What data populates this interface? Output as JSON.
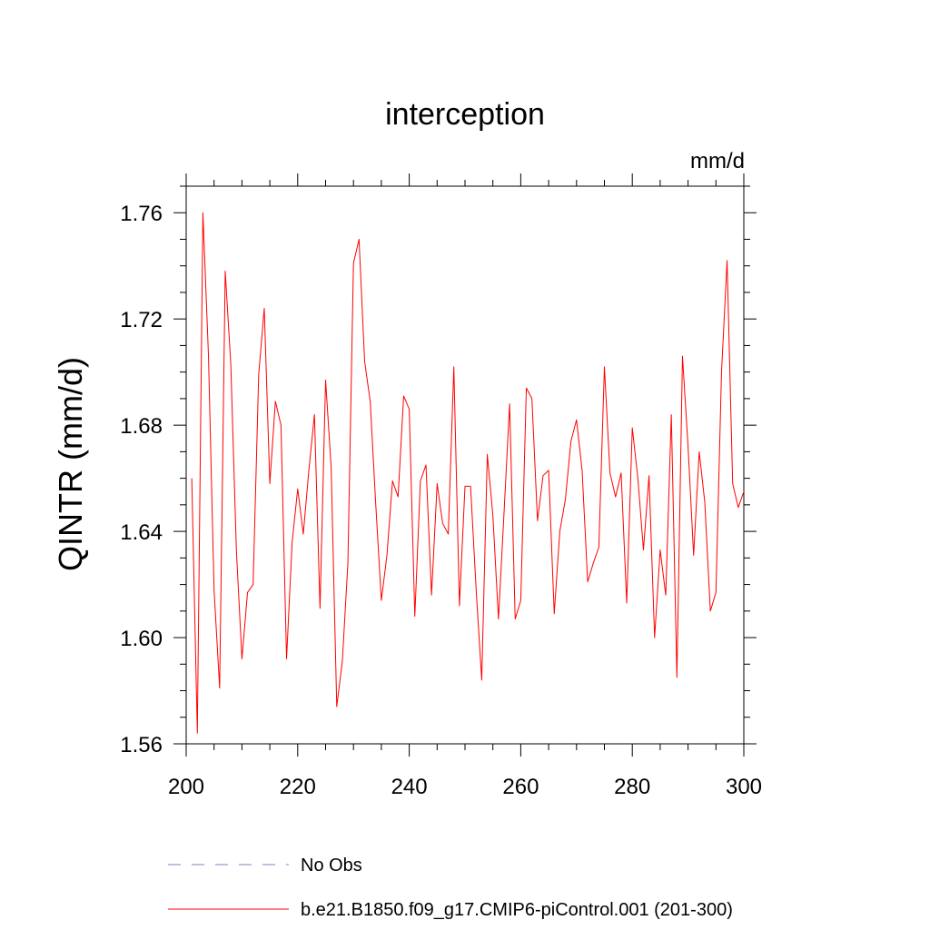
{
  "chart_data": {
    "type": "line",
    "title": "interception",
    "units": "mm/d",
    "ylabel": "QINTR  (mm/d)",
    "xlabel": "",
    "xlim": [
      200,
      300
    ],
    "ylim": [
      1.56,
      1.77
    ],
    "xticks": [
      200,
      220,
      240,
      260,
      280,
      300
    ],
    "xtick_labels": [
      "200",
      "220",
      "240",
      "260",
      "280",
      "300"
    ],
    "yticks": [
      1.56,
      1.6,
      1.64,
      1.68,
      1.72,
      1.76
    ],
    "ytick_labels": [
      "1.56",
      "1.60",
      "1.64",
      "1.68",
      "1.72",
      "1.76"
    ],
    "series": [
      {
        "name": "b.e21.B1850.f09_g17.CMIP6-piControl.001 (201-300)",
        "color": "#ff0000",
        "x": [
          201,
          202,
          203,
          204,
          205,
          206,
          207,
          208,
          209,
          210,
          211,
          212,
          213,
          214,
          215,
          216,
          217,
          218,
          219,
          220,
          221,
          222,
          223,
          224,
          225,
          226,
          227,
          228,
          229,
          230,
          231,
          232,
          233,
          234,
          235,
          236,
          237,
          238,
          239,
          240,
          241,
          242,
          243,
          244,
          245,
          246,
          247,
          248,
          249,
          250,
          251,
          252,
          253,
          254,
          255,
          256,
          257,
          258,
          259,
          260,
          261,
          262,
          263,
          264,
          265,
          266,
          267,
          268,
          269,
          270,
          271,
          272,
          273,
          274,
          275,
          276,
          277,
          278,
          279,
          280,
          281,
          282,
          283,
          284,
          285,
          286,
          287,
          288,
          289,
          290,
          291,
          292,
          293,
          294,
          295,
          296,
          297,
          298,
          299,
          300
        ],
        "values": [
          1.66,
          1.564,
          1.76,
          1.706,
          1.618,
          1.581,
          1.738,
          1.703,
          1.633,
          1.592,
          1.617,
          1.62,
          1.699,
          1.724,
          1.658,
          1.689,
          1.68,
          1.592,
          1.636,
          1.656,
          1.639,
          1.663,
          1.684,
          1.611,
          1.697,
          1.664,
          1.574,
          1.591,
          1.628,
          1.741,
          1.75,
          1.704,
          1.689,
          1.65,
          1.614,
          1.631,
          1.659,
          1.653,
          1.691,
          1.686,
          1.608,
          1.659,
          1.665,
          1.616,
          1.658,
          1.643,
          1.639,
          1.702,
          1.612,
          1.657,
          1.657,
          1.618,
          1.584,
          1.669,
          1.646,
          1.607,
          1.647,
          1.688,
          1.607,
          1.614,
          1.694,
          1.69,
          1.644,
          1.661,
          1.663,
          1.609,
          1.64,
          1.652,
          1.674,
          1.682,
          1.663,
          1.621,
          1.628,
          1.634,
          1.702,
          1.662,
          1.653,
          1.662,
          1.613,
          1.679,
          1.66,
          1.633,
          1.661,
          1.6,
          1.633,
          1.616,
          1.684,
          1.585,
          1.706,
          1.672,
          1.631,
          1.67,
          1.651,
          1.61,
          1.617,
          1.7,
          1.742,
          1.658,
          1.649,
          1.655
        ]
      },
      {
        "name": "No Obs",
        "color": "#8080c0",
        "dashed": true,
        "values": []
      }
    ],
    "legend": [
      {
        "label": "No Obs",
        "color": "#8080c0",
        "dashed": true
      },
      {
        "label": "b.e21.B1850.f09_g17.CMIP6-piControl.001 (201-300)",
        "color": "#ff0000",
        "dashed": false
      }
    ],
    "grid": false,
    "legend_position": "bottom"
  }
}
